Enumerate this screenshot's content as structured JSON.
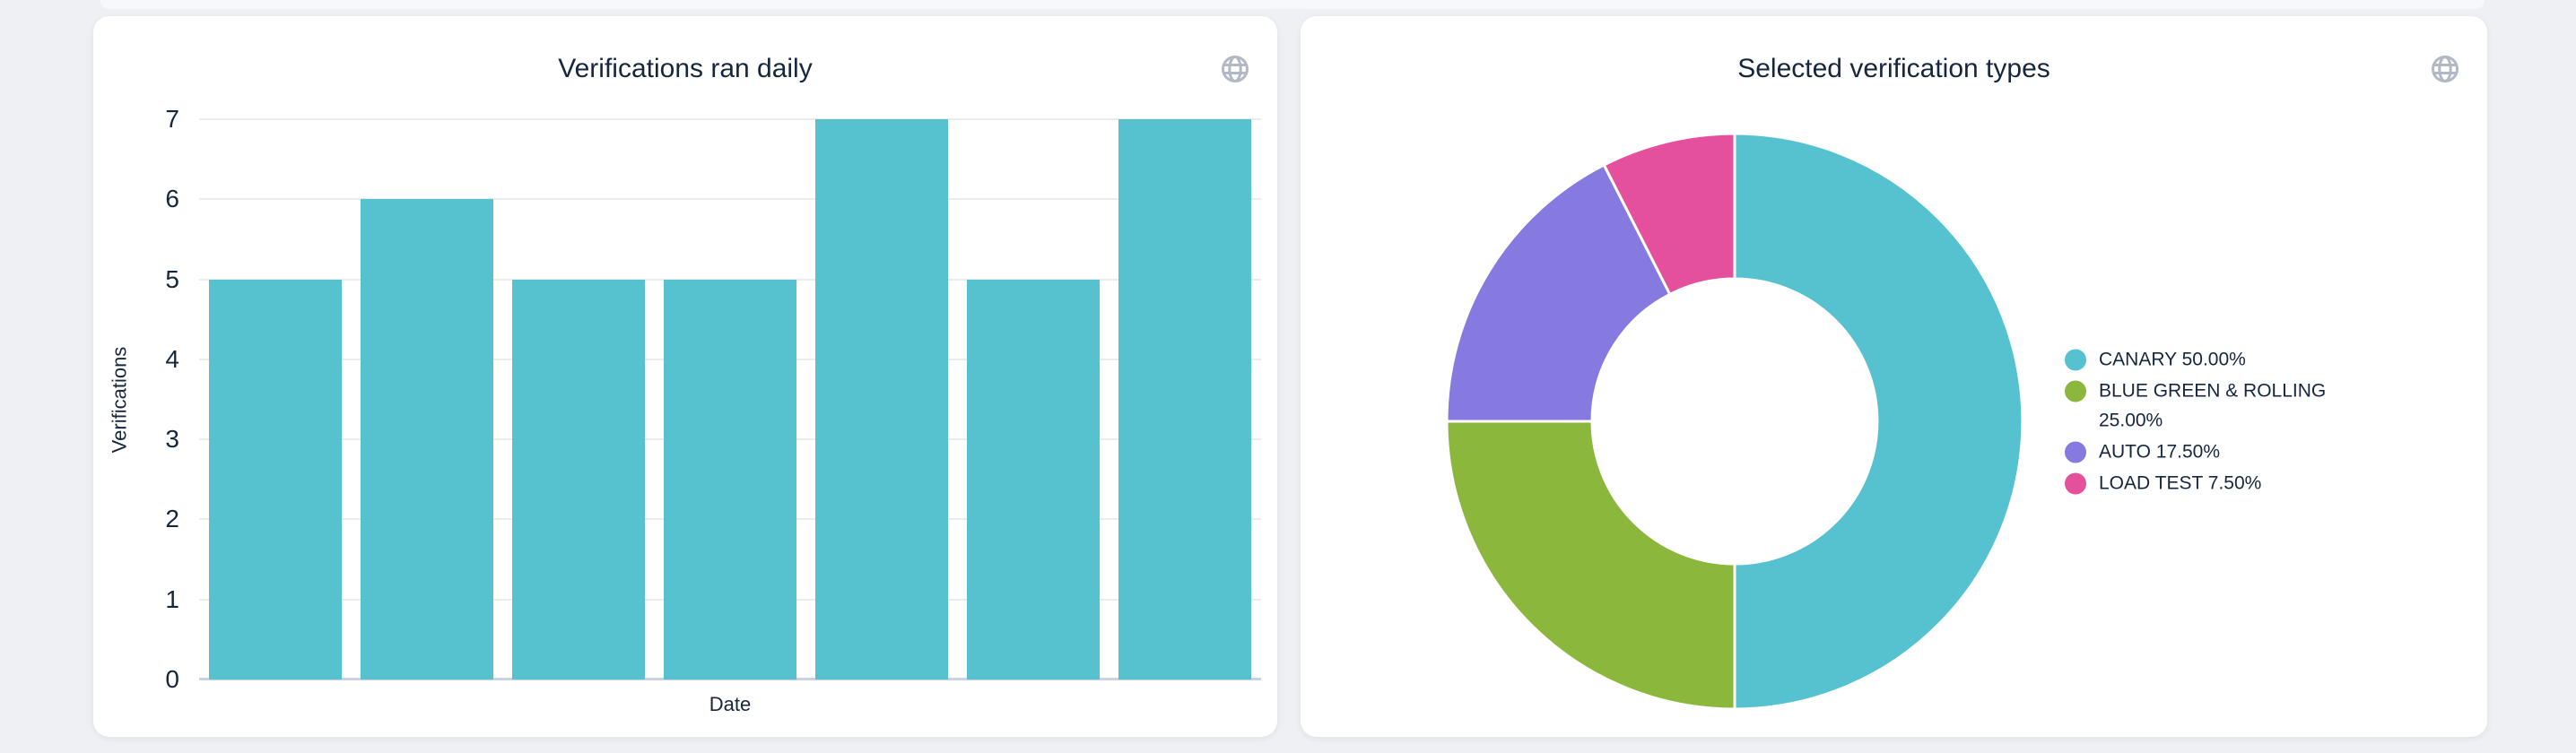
{
  "page": {
    "background": "#eef0f3",
    "card_background": "#ffffff",
    "text_color": "#16263c",
    "globe_icon_color": "#b2b9c3",
    "gridline_color": "#ececef",
    "axis_baseline_color": "#ccd3dd"
  },
  "chart_data": [
    {
      "type": "bar",
      "title": "Verifications ran daily",
      "xlabel": "Date",
      "ylabel": "Verifications",
      "values": [
        5,
        6,
        5,
        5,
        7,
        5,
        7
      ],
      "ylim": [
        0,
        7
      ],
      "yticks": [
        0,
        1,
        2,
        3,
        4,
        5,
        6,
        7
      ],
      "x_tick_labels_shown": false,
      "grid": true,
      "bar_color": "#56c1cf",
      "legend_position": "none"
    },
    {
      "type": "pie",
      "donut": true,
      "title": "Selected verification types",
      "labels": [
        "CANARY",
        "BLUE GREEN & ROLLING",
        "AUTO",
        "LOAD TEST"
      ],
      "values": [
        50.0,
        25.0,
        17.5,
        7.5
      ],
      "legend_labels": [
        "CANARY 50.00%",
        "BLUE GREEN & ROLLING 25.00%",
        "AUTO 17.50%",
        "LOAD TEST 7.50%"
      ],
      "colors": [
        "#56c1cf",
        "#8bb83c",
        "#8679e0",
        "#e4509c"
      ],
      "start_angle": "top",
      "direction": "clockwise",
      "inner_radius_ratio": 0.495,
      "slice_border_color": "#ffffff",
      "legend_position": "right"
    }
  ]
}
